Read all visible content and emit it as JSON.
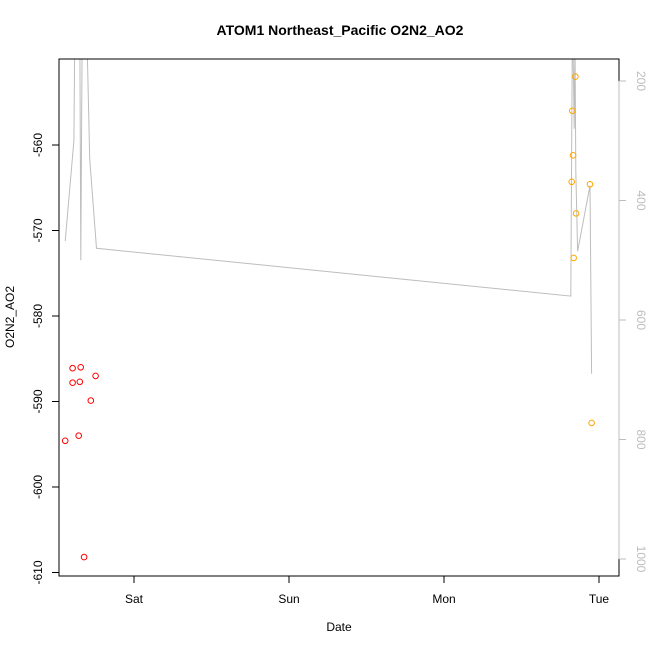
{
  "chart_data": {
    "type": "scatter",
    "title": "ATOM1 Northeast_Pacific O2N2_AO2",
    "xlabel": "Date",
    "ylabel": "O2N2_AO2",
    "x_ticks": [
      "Sat",
      "Sun",
      "Mon",
      "Tue"
    ],
    "x_tick_positions_days": [
      0.5,
      1.5,
      2.5,
      3.5
    ],
    "xlim_days": [
      0.0,
      3.6
    ],
    "ylim": [
      -611,
      -550
    ],
    "y_ticks": [
      -560,
      -570,
      -580,
      -590,
      -600,
      -610
    ],
    "y2_ticks": [
      200,
      400,
      600,
      800,
      1000
    ],
    "y2lim": [
      1015,
      175
    ],
    "grid": false,
    "series": [
      {
        "color": "#ff0000",
        "marker": "circle",
        "points": [
          {
            "x": 0.056,
            "y": -594.6
          },
          {
            "x": 0.104,
            "y": -586.1
          },
          {
            "x": 0.104,
            "y": -587.8
          },
          {
            "x": 0.143,
            "y": -594.0
          },
          {
            "x": 0.15,
            "y": -587.7
          },
          {
            "x": 0.156,
            "y": -586.0
          },
          {
            "x": 0.178,
            "y": -608.2
          },
          {
            "x": 0.221,
            "y": -589.9
          },
          {
            "x": 0.252,
            "y": -587.0
          }
        ]
      },
      {
        "color": "#ffa500",
        "marker": "circle",
        "points": [
          {
            "x": 3.324,
            "y": -564.3
          },
          {
            "x": 3.328,
            "y": -556.0
          },
          {
            "x": 3.333,
            "y": -561.2
          },
          {
            "x": 3.337,
            "y": -573.2
          },
          {
            "x": 3.348,
            "y": -552.0
          },
          {
            "x": 3.352,
            "y": -568.0
          },
          {
            "x": 3.442,
            "y": -564.6
          },
          {
            "x": 3.452,
            "y": -592.5
          }
        ]
      }
    ],
    "secondary_line": {
      "color": "#bdbdbd",
      "axis": "right",
      "points": [
        {
          "x": 0.056,
          "y": 468
        },
        {
          "x": 0.112,
          "y": 300
        },
        {
          "x": 0.118,
          "y": 120
        },
        {
          "x": 0.15,
          "y": 110
        },
        {
          "x": 0.157,
          "y": 500
        },
        {
          "x": 0.166,
          "y": 110
        },
        {
          "x": 0.197,
          "y": 130
        },
        {
          "x": 0.214,
          "y": 330
        },
        {
          "x": 0.258,
          "y": 480
        },
        {
          "x": 3.318,
          "y": 560
        },
        {
          "x": 3.328,
          "y": 130
        },
        {
          "x": 3.333,
          "y": 150
        },
        {
          "x": 3.34,
          "y": 280
        },
        {
          "x": 3.345,
          "y": 130
        },
        {
          "x": 3.35,
          "y": 350
        },
        {
          "x": 3.362,
          "y": 485
        },
        {
          "x": 3.442,
          "y": 375
        },
        {
          "x": 3.452,
          "y": 690
        }
      ]
    }
  }
}
